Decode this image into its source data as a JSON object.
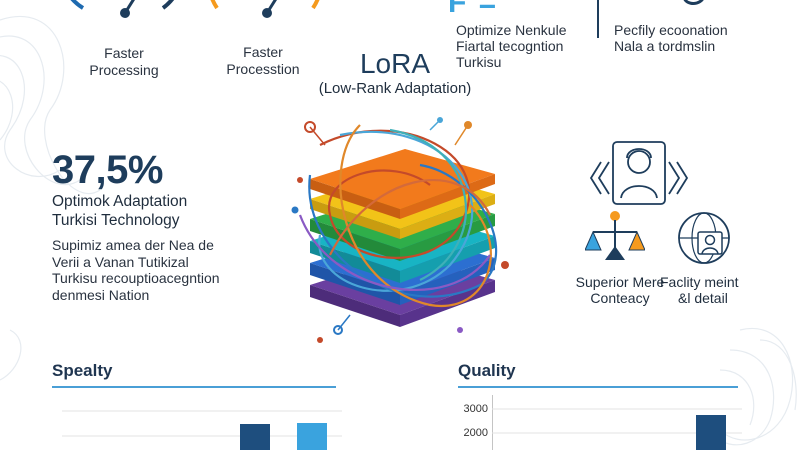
{
  "colors": {
    "navy": "#1e3d5c",
    "blue": "#3aa3de",
    "orange": "#f59a1e",
    "accent_line": "#4a9fd6"
  },
  "gauges": [
    {
      "label": "Faster\nProcessing"
    },
    {
      "label": "Faster\nProcesstion"
    }
  ],
  "top_stats": {
    "center_fragment": "F =",
    "left_block": [
      "Optimize Nenkule",
      "Fiartal tecogntion",
      "Turkisu"
    ],
    "right_block": [
      "Pecfily ecoonation",
      "Nala a tordmslin"
    ]
  },
  "header": {
    "title": "LoRA",
    "subtitle": "(Low-Rank Adaptation)"
  },
  "left_panel": {
    "percent": "37,5%",
    "headline": [
      "Optimok Adaptation",
      "Turkisi Technology"
    ],
    "body": [
      "Supimiz amea der Nea de",
      "Verii a Vanan Tutikizal",
      "Turkisu recouptioacegntion",
      "denmesi Nation"
    ]
  },
  "right_panel": {
    "label_left": [
      "Superior Mere",
      "Conteacy"
    ],
    "label_right": [
      "Faclity meint",
      "&l detail"
    ]
  },
  "sections": {
    "left_title": "Spealty",
    "right_title": "Quality"
  },
  "chart_data": [
    {
      "type": "bar",
      "title": "Spealty",
      "categories": [
        "",
        ""
      ],
      "series": [
        {
          "values": [
            null,
            null
          ]
        }
      ],
      "bar_colors": [
        "#1e4e7e",
        "#3aa3de"
      ]
    },
    {
      "type": "bar",
      "title": "Quality",
      "yticks": [
        3000,
        2000
      ],
      "series": [
        {
          "values": [
            2750
          ]
        }
      ],
      "bar_colors": [
        "#1e4e7e"
      ]
    }
  ]
}
